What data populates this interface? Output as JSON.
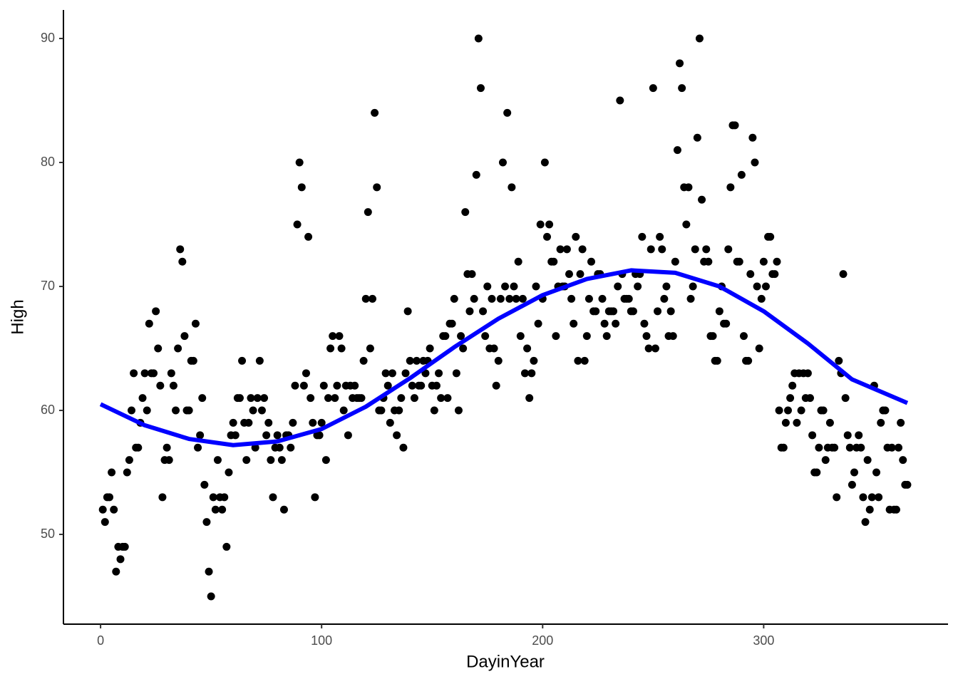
{
  "chart_data": {
    "type": "scatter",
    "x_label": "DayinYear",
    "y_label": "High",
    "color": "#000000",
    "x": [
      1,
      2,
      3,
      4,
      5,
      6,
      7,
      8,
      9,
      10,
      11,
      12,
      13,
      14,
      15,
      16,
      17,
      18,
      19,
      20,
      21,
      22,
      23,
      24,
      25,
      26,
      27,
      28,
      29,
      30,
      31,
      32,
      33,
      34,
      35,
      36,
      37,
      38,
      39,
      40,
      41,
      42,
      43,
      44,
      45,
      46,
      47,
      48,
      49,
      50,
      51,
      52,
      53,
      54,
      55,
      56,
      57,
      58,
      59,
      60,
      61,
      62,
      63,
      64,
      65,
      66,
      67,
      68,
      69,
      70,
      71,
      72,
      73,
      74,
      75,
      76,
      77,
      78,
      79,
      80,
      81,
      82,
      83,
      84,
      85,
      86,
      87,
      88,
      89,
      90,
      91,
      92,
      93,
      94,
      95,
      96,
      97,
      98,
      99,
      100,
      101,
      102,
      103,
      104,
      105,
      106,
      107,
      108,
      109,
      110,
      111,
      112,
      113,
      114,
      115,
      116,
      117,
      118,
      119,
      120,
      121,
      122,
      123,
      124,
      125,
      126,
      127,
      128,
      129,
      130,
      131,
      132,
      133,
      134,
      135,
      136,
      137,
      138,
      139,
      140,
      141,
      142,
      143,
      144,
      145,
      146,
      147,
      148,
      149,
      150,
      151,
      152,
      153,
      154,
      155,
      156,
      157,
      158,
      159,
      160,
      161,
      162,
      163,
      164,
      165,
      166,
      167,
      168,
      169,
      170,
      171,
      172,
      173,
      174,
      175,
      176,
      177,
      178,
      179,
      180,
      181,
      182,
      183,
      184,
      185,
      186,
      187,
      188,
      189,
      190,
      191,
      192,
      193,
      194,
      195,
      196,
      197,
      198,
      199,
      200,
      201,
      202,
      203,
      204,
      205,
      206,
      207,
      208,
      209,
      210,
      211,
      212,
      213,
      214,
      215,
      216,
      217,
      218,
      219,
      220,
      221,
      222,
      223,
      224,
      225,
      226,
      227,
      228,
      229,
      230,
      231,
      232,
      233,
      234,
      235,
      236,
      237,
      238,
      239,
      240,
      241,
      242,
      243,
      244,
      245,
      246,
      247,
      248,
      249,
      250,
      251,
      252,
      253,
      254,
      255,
      256,
      257,
      258,
      259,
      260,
      261,
      262,
      263,
      264,
      265,
      266,
      267,
      268,
      269,
      270,
      271,
      272,
      273,
      274,
      275,
      276,
      277,
      278,
      279,
      280,
      281,
      282,
      283,
      284,
      285,
      286,
      287,
      288,
      289,
      290,
      291,
      292,
      293,
      294,
      295,
      296,
      297,
      298,
      299,
      300,
      301,
      302,
      303,
      304,
      305,
      306,
      307,
      308,
      309,
      310,
      311,
      312,
      313,
      314,
      315,
      316,
      317,
      318,
      319,
      320,
      321,
      322,
      323,
      324,
      325,
      326,
      327,
      328,
      329,
      330,
      331,
      332,
      333,
      334,
      335,
      336,
      337,
      338,
      339,
      340,
      341,
      342,
      343,
      344,
      345,
      346,
      347,
      348,
      349,
      350,
      351,
      352,
      353,
      354,
      355,
      356,
      357,
      358,
      359,
      360,
      361,
      362,
      363,
      364,
      365
    ],
    "values": [
      52,
      51,
      53,
      53,
      55,
      52,
      47,
      49,
      48,
      49,
      49,
      55,
      56,
      60,
      63,
      57,
      57,
      59,
      61,
      63,
      60,
      67,
      63,
      63,
      68,
      65,
      62,
      53,
      56,
      57,
      56,
      63,
      62,
      60,
      65,
      73,
      72,
      66,
      60,
      60,
      64,
      64,
      67,
      57,
      58,
      61,
      54,
      51,
      47,
      45,
      53,
      52,
      56,
      53,
      52,
      53,
      49,
      55,
      58,
      59,
      58,
      61,
      61,
      64,
      59,
      56,
      59,
      61,
      60,
      57,
      61,
      64,
      60,
      61,
      58,
      59,
      56,
      53,
      57,
      58,
      57,
      56,
      52,
      58,
      58,
      57,
      59,
      62,
      75,
      80,
      78,
      62,
      63,
      74,
      61,
      59,
      53,
      58,
      58,
      59,
      62,
      56,
      61,
      65,
      66,
      61,
      62,
      66,
      65,
      60,
      62,
      58,
      62,
      61,
      62,
      61,
      61,
      61,
      64,
      69,
      76,
      65,
      69,
      84,
      78,
      60,
      60,
      61,
      63,
      62,
      59,
      63,
      60,
      58,
      60,
      61,
      57,
      63,
      68,
      64,
      62,
      61,
      64,
      62,
      62,
      64,
      63,
      64,
      65,
      62,
      60,
      62,
      63,
      61,
      66,
      66,
      61,
      67,
      67,
      69,
      63,
      60,
      66,
      65,
      76,
      71,
      68,
      71,
      69,
      79,
      90,
      86,
      68,
      66,
      70,
      65,
      69,
      65,
      62,
      64,
      69,
      80,
      70,
      84,
      69,
      78,
      70,
      69,
      72,
      66,
      69,
      63,
      65,
      61,
      63,
      64,
      70,
      67,
      75,
      69,
      80,
      74,
      75,
      72,
      72,
      66,
      70,
      73,
      70,
      70,
      73,
      71,
      69,
      67,
      74,
      64,
      71,
      73,
      64,
      66,
      69,
      72,
      68,
      68,
      71,
      71,
      69,
      67,
      66,
      68,
      68,
      68,
      67,
      70,
      85,
      71,
      69,
      69,
      69,
      68,
      68,
      71,
      70,
      71,
      74,
      67,
      66,
      65,
      73,
      86,
      65,
      68,
      74,
      73,
      69,
      70,
      66,
      68,
      66,
      72,
      81,
      88,
      86,
      78,
      75,
      78,
      69,
      70,
      73,
      82,
      90,
      77,
      72,
      73,
      72,
      66,
      66,
      64,
      64,
      68,
      70,
      67,
      67,
      73,
      78,
      83,
      83,
      72,
      72,
      79,
      66,
      64,
      64,
      71,
      82,
      80,
      70,
      65,
      69,
      72,
      70,
      74,
      74,
      71,
      71,
      72,
      60,
      57,
      57,
      59,
      60,
      61,
      62,
      63,
      59,
      63,
      60,
      63,
      61,
      63,
      61,
      58,
      55,
      55,
      57,
      60,
      60,
      56,
      57,
      59,
      57,
      57,
      53,
      64,
      63,
      71,
      61,
      58,
      57,
      54,
      55,
      57,
      58,
      57,
      53,
      51,
      56,
      52,
      53,
      62,
      55,
      53,
      59,
      60,
      60,
      57,
      52,
      57,
      52,
      52,
      57,
      59,
      56,
      54,
      54
    ],
    "fit": {
      "color": "#0000ff",
      "x": [
        0,
        20,
        40,
        60,
        80,
        100,
        120,
        140,
        160,
        180,
        200,
        220,
        240,
        260,
        280,
        300,
        320,
        340,
        365
      ],
      "values": [
        60.5,
        58.8,
        57.7,
        57.2,
        57.5,
        58.5,
        60.3,
        62.6,
        65.1,
        67.4,
        69.3,
        70.6,
        71.3,
        71.1,
        70.0,
        68.0,
        65.4,
        62.5,
        60.6
      ]
    },
    "xlim": [
      -16.8,
      383.4
    ],
    "ylim": [
      42.76,
      92.3
    ],
    "xticks": [
      0,
      100,
      200,
      300
    ],
    "yticks": [
      50,
      60,
      70,
      80,
      90
    ],
    "grid": false
  }
}
